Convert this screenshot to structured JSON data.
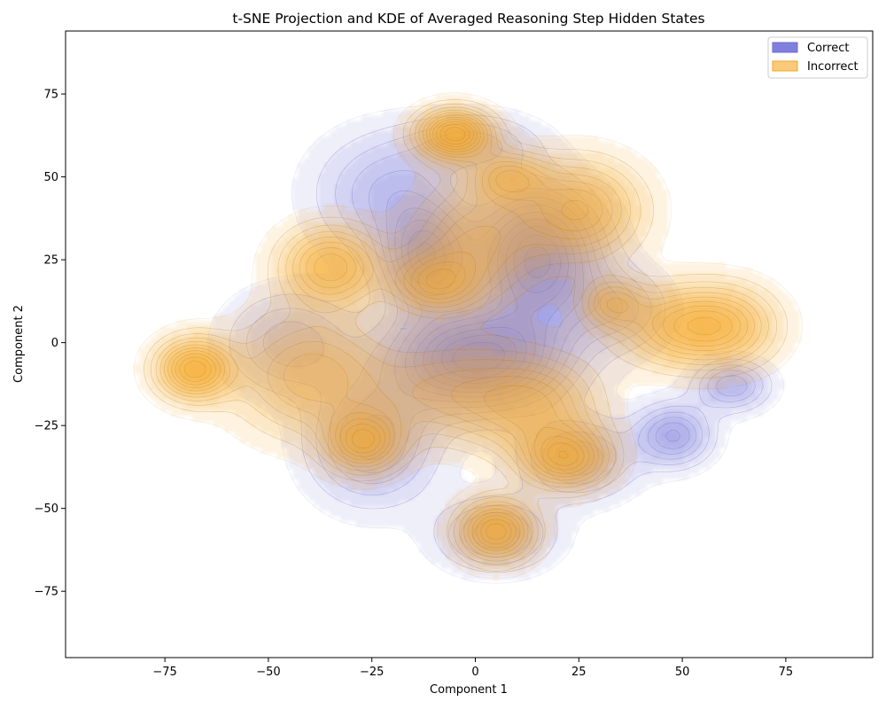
{
  "chart_data": {
    "type": "kde-contour",
    "title": "t-SNE Projection and KDE of Averaged Reasoning Step Hidden States",
    "xlabel": "Component 1",
    "ylabel": "Component 2",
    "xlim": [
      -99,
      96
    ],
    "ylim": [
      -95,
      94
    ],
    "xticks": [
      -75,
      -50,
      -25,
      0,
      25,
      50,
      75
    ],
    "yticks": [
      -75,
      -50,
      -25,
      0,
      25,
      50,
      75
    ],
    "grid": false,
    "legend_position": "top-right",
    "series": [
      {
        "name": "Correct",
        "color": "#6a6ad6",
        "modes": [
          {
            "x": 0,
            "y": -5,
            "sx": 14,
            "sy": 10,
            "w": 1.0
          },
          {
            "x": 15,
            "y": 25,
            "sx": 10,
            "sy": 14,
            "w": 0.9
          },
          {
            "x": -12,
            "y": 25,
            "sx": 7,
            "sy": 10,
            "w": 0.7
          },
          {
            "x": 48,
            "y": -28,
            "sx": 6,
            "sy": 6,
            "w": 0.55
          },
          {
            "x": 62,
            "y": -13,
            "sx": 6,
            "sy": 5,
            "w": 0.45
          },
          {
            "x": -25,
            "y": -30,
            "sx": 10,
            "sy": 12,
            "w": 0.5
          },
          {
            "x": 5,
            "y": -58,
            "sx": 9,
            "sy": 7,
            "w": 0.45
          },
          {
            "x": 25,
            "y": -35,
            "sx": 9,
            "sy": 8,
            "w": 0.45
          },
          {
            "x": -20,
            "y": 45,
            "sx": 12,
            "sy": 12,
            "w": 0.4
          },
          {
            "x": -45,
            "y": 0,
            "sx": 10,
            "sy": 10,
            "w": 0.35
          },
          {
            "x": 35,
            "y": 10,
            "sx": 8,
            "sy": 8,
            "w": 0.3
          },
          {
            "x": 0,
            "y": 60,
            "sx": 10,
            "sy": 6,
            "w": 0.3
          }
        ]
      },
      {
        "name": "Incorrect",
        "color": "#f5a623",
        "modes": [
          {
            "x": -5,
            "y": 63,
            "sx": 6,
            "sy": 5,
            "w": 0.9
          },
          {
            "x": -68,
            "y": -8,
            "sx": 6,
            "sy": 6,
            "w": 0.8
          },
          {
            "x": -35,
            "y": 23,
            "sx": 8,
            "sy": 8,
            "w": 0.6
          },
          {
            "x": -27,
            "y": -30,
            "sx": 6,
            "sy": 6,
            "w": 0.65
          },
          {
            "x": 5,
            "y": -57,
            "sx": 6,
            "sy": 6,
            "w": 0.75
          },
          {
            "x": 22,
            "y": -35,
            "sx": 7,
            "sy": 6,
            "w": 0.65
          },
          {
            "x": 50,
            "y": 5,
            "sx": 10,
            "sy": 8,
            "w": 0.55
          },
          {
            "x": 25,
            "y": 40,
            "sx": 10,
            "sy": 10,
            "w": 0.55
          },
          {
            "x": -10,
            "y": 18,
            "sx": 7,
            "sy": 6,
            "w": 0.5
          },
          {
            "x": 8,
            "y": 50,
            "sx": 6,
            "sy": 5,
            "w": 0.45
          },
          {
            "x": 33,
            "y": 12,
            "sx": 5,
            "sy": 5,
            "w": 0.4
          },
          {
            "x": -40,
            "y": -10,
            "sx": 12,
            "sy": 12,
            "w": 0.45
          },
          {
            "x": 0,
            "y": 30,
            "sx": 10,
            "sy": 12,
            "w": 0.4
          },
          {
            "x": 62,
            "y": 5,
            "sx": 8,
            "sy": 8,
            "w": 0.35
          },
          {
            "x": -5,
            "y": -15,
            "sx": 14,
            "sy": 10,
            "w": 0.35
          },
          {
            "x": 15,
            "y": -20,
            "sx": 10,
            "sy": 10,
            "w": 0.4
          }
        ]
      }
    ]
  }
}
